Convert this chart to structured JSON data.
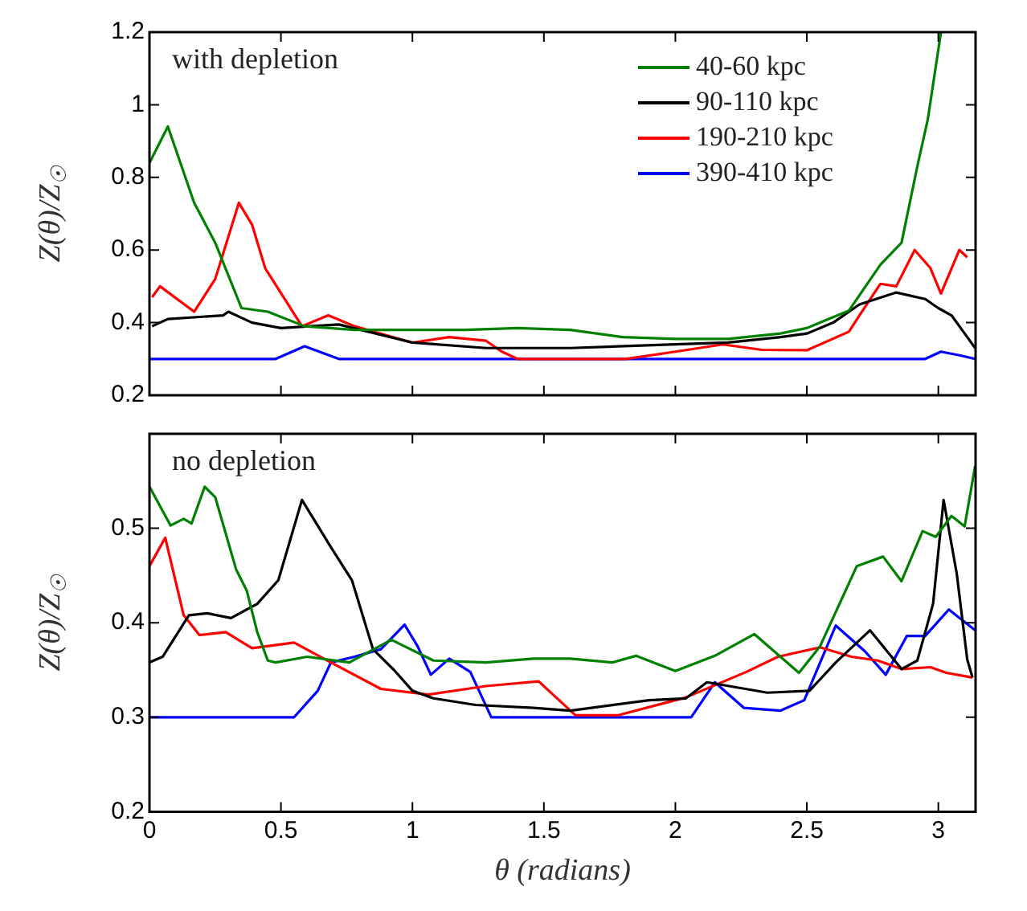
{
  "chart_data": [
    {
      "type": "line",
      "ylabel": "Z(θ)/Z$_{☉}$",
      "annotations": [
        "with depletion"
      ],
      "xlim": [
        0,
        3.1416
      ],
      "xticks": [
        0,
        0.5,
        1,
        1.5,
        2,
        2.5,
        3
      ],
      "ylim": [
        0.2,
        1.2
      ],
      "yticks": [
        0.2,
        0.4,
        0.6,
        0.8,
        1,
        1.2
      ],
      "tick_labels": "y",
      "grid": false,
      "legend": "top right",
      "marker": "none",
      "line_style": "solid",
      "series": [
        {
          "name": "40-60 kpc",
          "color": "#008000",
          "x": [
            0,
            0.07,
            0.17,
            0.25,
            0.35,
            0.45,
            0.59,
            0.78,
            1.0,
            1.2,
            1.4,
            1.6,
            1.8,
            2.0,
            2.2,
            2.4,
            2.5,
            2.55,
            2.66,
            2.78,
            2.86,
            2.92,
            2.96,
            3.01
          ],
          "values": [
            0.84,
            0.94,
            0.73,
            0.62,
            0.44,
            0.43,
            0.39,
            0.38,
            0.38,
            0.38,
            0.385,
            0.38,
            0.36,
            0.355,
            0.355,
            0.37,
            0.385,
            0.4,
            0.433,
            0.56,
            0.62,
            0.83,
            0.96,
            1.2
          ]
        },
        {
          "name": "90-110 kpc",
          "color": "#000000",
          "x": [
            0.01,
            0.07,
            0.28,
            0.3,
            0.39,
            0.5,
            0.72,
            1.0,
            1.28,
            1.6,
            2.0,
            2.2,
            2.4,
            2.5,
            2.6,
            2.7,
            2.84,
            2.95,
            3.0,
            3.05,
            3.1,
            3.14
          ],
          "values": [
            0.39,
            0.41,
            0.42,
            0.43,
            0.4,
            0.385,
            0.395,
            0.345,
            0.33,
            0.33,
            0.34,
            0.345,
            0.36,
            0.37,
            0.4,
            0.45,
            0.483,
            0.465,
            0.44,
            0.42,
            0.37,
            0.33
          ]
        },
        {
          "name": "190-210 kpc",
          "color": "#ff0000",
          "x": [
            0.01,
            0.04,
            0.17,
            0.25,
            0.34,
            0.39,
            0.44,
            0.58,
            0.68,
            0.78,
            1.0,
            1.14,
            1.28,
            1.34,
            1.4,
            1.81,
            2.0,
            2.18,
            2.33,
            2.5,
            2.66,
            2.7,
            2.78,
            2.84,
            2.91,
            2.97,
            3.01,
            3.08,
            3.11
          ],
          "values": [
            0.47,
            0.5,
            0.43,
            0.52,
            0.73,
            0.67,
            0.55,
            0.39,
            0.42,
            0.39,
            0.345,
            0.36,
            0.35,
            0.32,
            0.3,
            0.3,
            0.32,
            0.34,
            0.325,
            0.324,
            0.375,
            0.42,
            0.507,
            0.5,
            0.6,
            0.55,
            0.48,
            0.6,
            0.58
          ]
        },
        {
          "name": "390-410 kpc",
          "color": "#0000ff",
          "x": [
            0,
            0.48,
            0.59,
            0.72,
            2.95,
            3.01,
            3.08,
            3.14
          ],
          "values": [
            0.3,
            0.3,
            0.335,
            0.3,
            0.3,
            0.32,
            0.31,
            0.3
          ]
        }
      ]
    },
    {
      "type": "line",
      "xlabel": "θ (radians)",
      "ylabel": "Z(θ)/Z$_{☉}$",
      "annotations": [
        "no depletion"
      ],
      "xlim": [
        0,
        3.1416
      ],
      "xticks": [
        0,
        0.5,
        1,
        1.5,
        2,
        2.5,
        3
      ],
      "ylim": [
        0.2,
        0.6
      ],
      "yticks": [
        0.2,
        0.3,
        0.4,
        0.5
      ],
      "grid": false,
      "marker": "none",
      "line_style": "solid",
      "series": [
        {
          "color": "#008000",
          "x": [
            0,
            0.08,
            0.13,
            0.16,
            0.21,
            0.25,
            0.33,
            0.37,
            0.41,
            0.45,
            0.48,
            0.6,
            0.76,
            0.92,
            1.08,
            1.28,
            1.46,
            1.6,
            1.76,
            1.85,
            2.0,
            2.15,
            2.3,
            2.47,
            2.55,
            2.69,
            2.79,
            2.86,
            2.94,
            2.99,
            3.05,
            3.1,
            3.14
          ],
          "values": [
            0.544,
            0.503,
            0.51,
            0.505,
            0.544,
            0.533,
            0.456,
            0.434,
            0.39,
            0.36,
            0.358,
            0.364,
            0.358,
            0.382,
            0.36,
            0.358,
            0.362,
            0.362,
            0.358,
            0.365,
            0.349,
            0.365,
            0.388,
            0.347,
            0.375,
            0.46,
            0.47,
            0.444,
            0.497,
            0.491,
            0.513,
            0.502,
            0.566
          ]
        },
        {
          "color": "#000000",
          "x": [
            0,
            0.05,
            0.15,
            0.22,
            0.31,
            0.41,
            0.49,
            0.58,
            0.69,
            0.77,
            0.85,
            0.93,
            1.0,
            1.08,
            1.24,
            1.46,
            1.6,
            1.9,
            2.04,
            2.12,
            2.35,
            2.51,
            2.61,
            2.74,
            2.86,
            2.92,
            2.98,
            3.02,
            3.07,
            3.11,
            3.13
          ],
          "values": [
            0.358,
            0.364,
            0.408,
            0.41,
            0.405,
            0.42,
            0.445,
            0.53,
            0.48,
            0.445,
            0.372,
            0.35,
            0.328,
            0.32,
            0.313,
            0.31,
            0.307,
            0.318,
            0.32,
            0.337,
            0.326,
            0.328,
            0.358,
            0.392,
            0.351,
            0.36,
            0.42,
            0.53,
            0.452,
            0.361,
            0.342
          ]
        },
        {
          "color": "#ff0000",
          "x": [
            0,
            0.06,
            0.13,
            0.19,
            0.29,
            0.39,
            0.55,
            0.69,
            0.88,
            1.06,
            1.28,
            1.48,
            1.62,
            1.78,
            2.04,
            2.27,
            2.39,
            2.55,
            2.67,
            2.77,
            2.86,
            2.97,
            3.03,
            3.13
          ],
          "values": [
            0.46,
            0.49,
            0.408,
            0.387,
            0.39,
            0.373,
            0.379,
            0.358,
            0.33,
            0.324,
            0.333,
            0.338,
            0.302,
            0.302,
            0.321,
            0.348,
            0.364,
            0.374,
            0.364,
            0.36,
            0.351,
            0.353,
            0.347,
            0.342
          ]
        },
        {
          "color": "#0000ff",
          "x": [
            0,
            0.55,
            0.64,
            0.69,
            0.78,
            0.88,
            0.97,
            1.02,
            1.07,
            1.14,
            1.22,
            1.3,
            2.06,
            2.15,
            2.26,
            2.4,
            2.49,
            2.61,
            2.72,
            2.8,
            2.88,
            2.95,
            3.04,
            3.14
          ],
          "values": [
            0.3,
            0.3,
            0.328,
            0.358,
            0.364,
            0.372,
            0.398,
            0.375,
            0.345,
            0.362,
            0.348,
            0.3,
            0.3,
            0.337,
            0.31,
            0.307,
            0.318,
            0.397,
            0.37,
            0.345,
            0.386,
            0.386,
            0.414,
            0.392
          ]
        }
      ]
    }
  ]
}
